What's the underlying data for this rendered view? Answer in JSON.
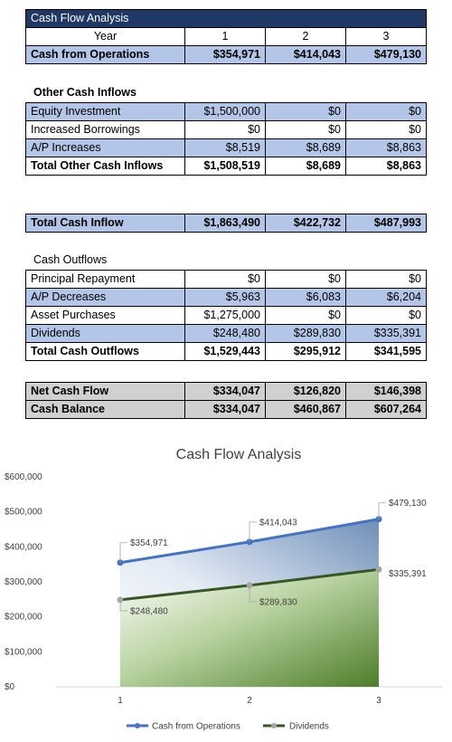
{
  "header_table": {
    "title": "Cash Flow Analysis",
    "year_label": "Year",
    "years": [
      "1",
      "2",
      "3"
    ],
    "operations": {
      "label": "Cash from Operations",
      "values": [
        "$354,971",
        "$414,043",
        "$479,130"
      ]
    }
  },
  "other_inflows": {
    "heading": "Other Cash Inflows",
    "rows": [
      {
        "label": "Equity Investment",
        "values": [
          "$1,500,000",
          "$0",
          "$0"
        ]
      },
      {
        "label": "Increased Borrowings",
        "values": [
          "$0",
          "$0",
          "$0"
        ]
      },
      {
        "label": "A/P Increases",
        "values": [
          "$8,519",
          "$8,689",
          "$8,863"
        ]
      }
    ],
    "total": {
      "label": "Total Other Cash Inflows",
      "values": [
        "$1,508,519",
        "$8,689",
        "$8,863"
      ]
    }
  },
  "total_inflow": {
    "label": "Total Cash Inflow",
    "values": [
      "$1,863,490",
      "$422,732",
      "$487,993"
    ]
  },
  "outflows": {
    "heading": "Cash Outflows",
    "rows": [
      {
        "label": "Principal Repayment",
        "values": [
          "$0",
          "$0",
          "$0"
        ]
      },
      {
        "label": "A/P Decreases",
        "values": [
          "$5,963",
          "$6,083",
          "$6,204"
        ]
      },
      {
        "label": "Asset Purchases",
        "values": [
          "$1,275,000",
          "$0",
          "$0"
        ]
      },
      {
        "label": "Dividends",
        "values": [
          "$248,480",
          "$289,830",
          "$335,391"
        ]
      }
    ],
    "total": {
      "label": "Total Cash Outflows",
      "values": [
        "$1,529,443",
        "$295,912",
        "$341,595"
      ]
    }
  },
  "summary": {
    "rows": [
      {
        "label": "Net Cash Flow",
        "values": [
          "$334,047",
          "$126,820",
          "$146,398"
        ]
      },
      {
        "label": "Cash Balance",
        "values": [
          "$334,047",
          "$460,867",
          "$607,264"
        ]
      }
    ]
  },
  "colors": {
    "operations_line": "#4472c4",
    "dividends_line": "#375623",
    "title_bar": "#1f3864",
    "row_highlight": "#b4c6e7",
    "summary_fill": "#d0d0d0"
  },
  "chart_data": {
    "type": "area",
    "title": "Cash Flow Analysis",
    "x": [
      1,
      2,
      3
    ],
    "x_tick_labels": [
      "1",
      "2",
      "3"
    ],
    "ylim": [
      0,
      600000
    ],
    "y_ticks": [
      0,
      100000,
      200000,
      300000,
      400000,
      500000,
      600000
    ],
    "y_tick_labels": [
      "$0",
      "$100,000",
      "$200,000",
      "$300,000",
      "$400,000",
      "$500,000",
      "$600,000"
    ],
    "series": [
      {
        "name": "Cash from Operations",
        "values": [
          354971,
          414043,
          479130
        ],
        "labels": [
          "$354,971",
          "$414,043",
          "$479,130"
        ]
      },
      {
        "name": "Dividends",
        "values": [
          248480,
          289830,
          335391
        ],
        "labels": [
          "$248,480",
          "$289,830",
          "$335,391"
        ]
      }
    ],
    "legend_position": "bottom",
    "grid": false
  }
}
